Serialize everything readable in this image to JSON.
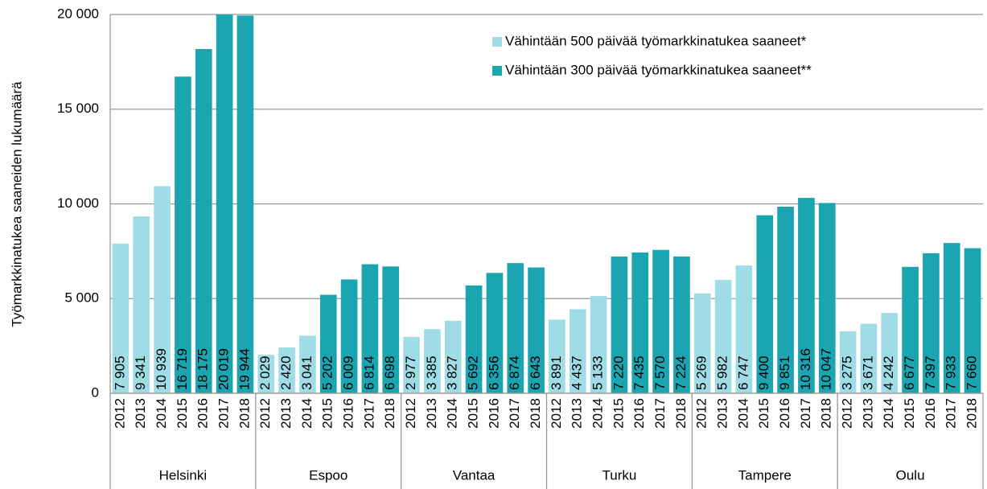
{
  "chart_data": {
    "type": "bar",
    "y_label": "Työmarkkinatukea saaneiden lukumäärä",
    "groups": [
      "Helsinki",
      "Espoo",
      "Vantaa",
      "Turku",
      "Tampere",
      "Oulu"
    ],
    "categories": [
      "2012",
      "2013",
      "2014",
      "2015",
      "2016",
      "2017",
      "2018",
      "2012",
      "2013",
      "2014",
      "2015",
      "2016",
      "2017",
      "2018",
      "2012",
      "2013",
      "2014",
      "2015",
      "2016",
      "2017",
      "2018",
      "2012",
      "2013",
      "2014",
      "2015",
      "2016",
      "2017",
      "2018",
      "2012",
      "2013",
      "2014",
      "2015",
      "2016",
      "2017",
      "2018",
      "2012",
      "2013",
      "2014",
      "2015",
      "2016",
      "2017",
      "2018"
    ],
    "series": [
      {
        "name": "Vähintään 500 päivää työmarkkinatukea saaneet*",
        "color": "#a0dce6",
        "values": [
          7905,
          9341,
          10939,
          null,
          null,
          null,
          null,
          2029,
          2420,
          3041,
          null,
          null,
          null,
          null,
          2977,
          3385,
          3827,
          null,
          null,
          null,
          null,
          3891,
          4437,
          5133,
          null,
          null,
          null,
          null,
          5269,
          5982,
          6747,
          null,
          null,
          null,
          null,
          3275,
          3671,
          4242,
          null,
          null,
          null,
          null
        ],
        "value_labels": [
          "7 905",
          "9 341",
          "10 939",
          null,
          null,
          null,
          null,
          "2 029",
          "2 420",
          "3 041",
          null,
          null,
          null,
          null,
          "2 977",
          "3 385",
          "3 827",
          null,
          null,
          null,
          null,
          "3 891",
          "4 437",
          "5 133",
          null,
          null,
          null,
          null,
          "5 269",
          "5 982",
          "6 747",
          null,
          null,
          null,
          null,
          "3 275",
          "3 671",
          "4 242",
          null,
          null,
          null,
          null
        ]
      },
      {
        "name": "Vähintään 300 päivää työmarkkinatukea saaneet**",
        "color": "#1ba5b1",
        "values": [
          null,
          null,
          null,
          16719,
          18175,
          20019,
          19944,
          null,
          null,
          null,
          5202,
          6009,
          6814,
          6698,
          null,
          null,
          null,
          5692,
          6356,
          6874,
          6643,
          null,
          null,
          null,
          7220,
          7435,
          7570,
          7224,
          null,
          null,
          null,
          9400,
          9851,
          10316,
          10047,
          null,
          null,
          null,
          6677,
          7397,
          7933,
          7660
        ],
        "value_labels": [
          null,
          null,
          null,
          "16 719",
          "18 175",
          "20 019",
          "19 944",
          null,
          null,
          null,
          "5 202",
          "6 009",
          "6 814",
          "6 698",
          null,
          null,
          null,
          "5 692",
          "6 356",
          "6 874",
          "6 643",
          null,
          null,
          null,
          "7 220",
          "7 435",
          "7 570",
          "7 224",
          null,
          null,
          null,
          "9 400",
          "9 851",
          "10 316",
          "10 047",
          null,
          null,
          null,
          "6 677",
          "7 397",
          "7 933",
          "7 660"
        ]
      }
    ],
    "ylim": [
      0,
      20000
    ],
    "yticks": [
      0,
      {
        "value": 5000,
        "label": "5 000"
      },
      {
        "value": 10000,
        "label": "10 000"
      },
      {
        "value": 15000,
        "label": "15 000"
      },
      {
        "value": 20000,
        "label": "20 000"
      }
    ],
    "grid": true,
    "legend": "upper right"
  }
}
